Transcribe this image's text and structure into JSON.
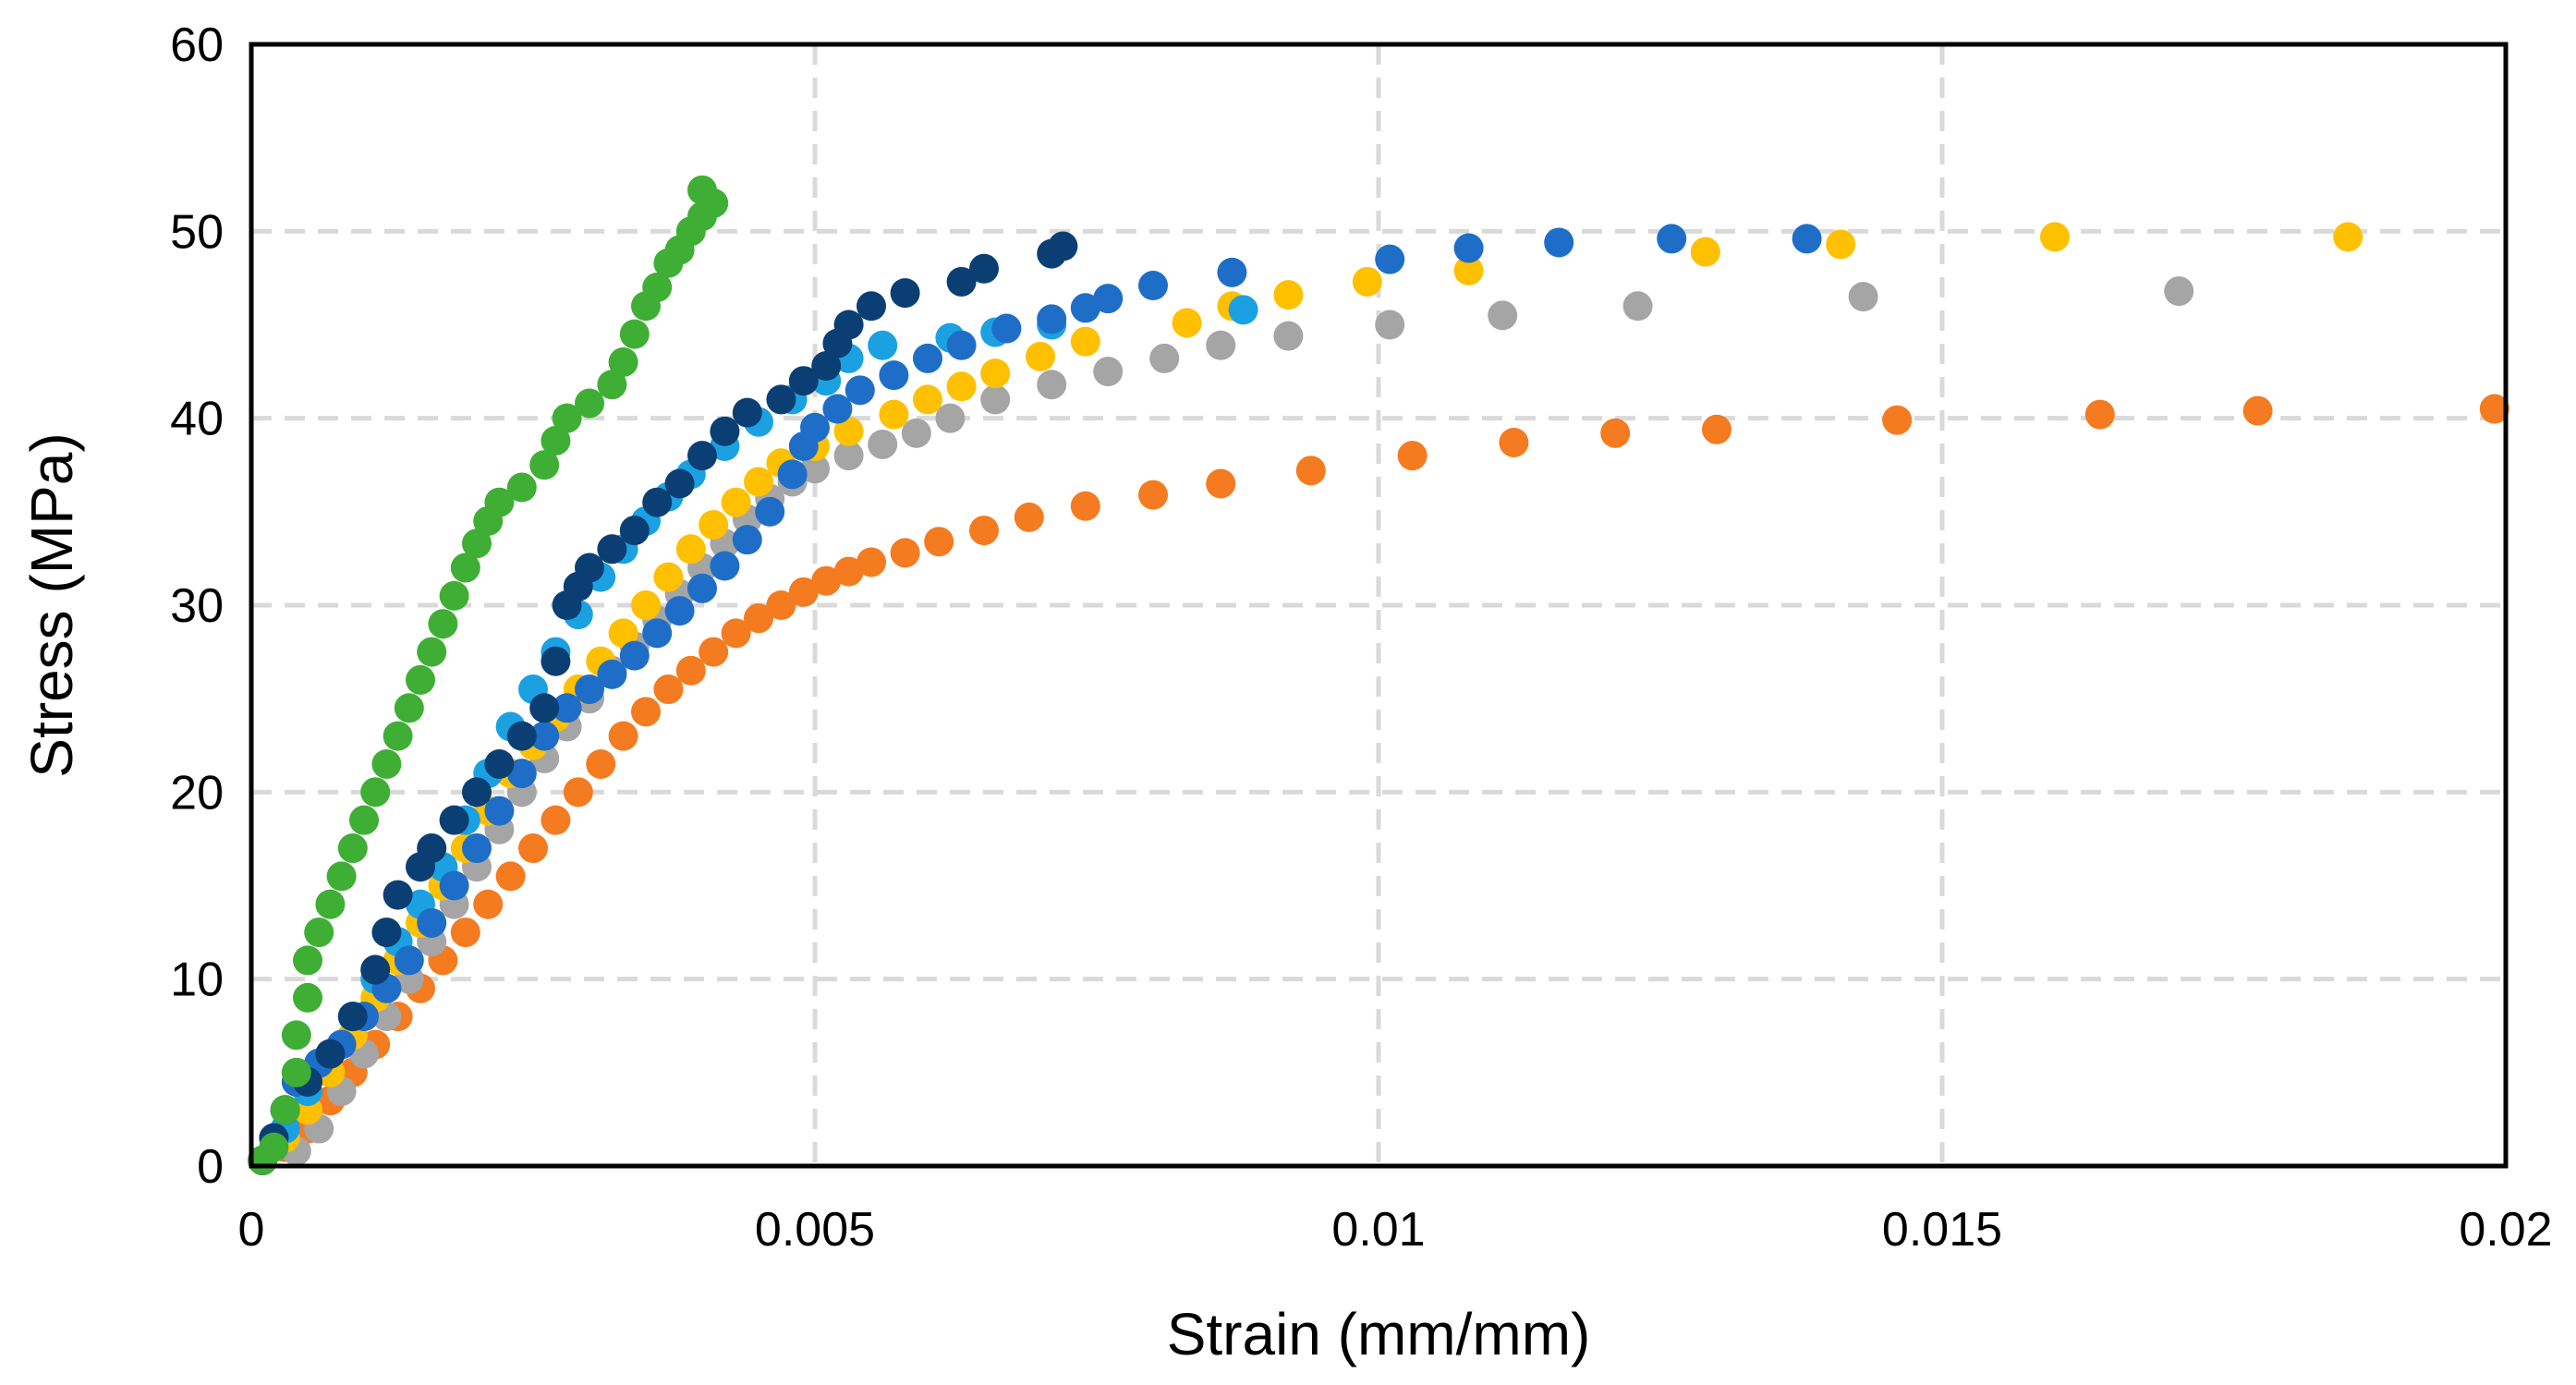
{
  "chart_data": {
    "type": "scatter",
    "title": "",
    "xlabel": "Strain (mm/mm)",
    "ylabel": "Stress (MPa)",
    "xlim": [
      0,
      0.02
    ],
    "ylim": [
      0,
      60
    ],
    "x_ticks": [
      0,
      0.005,
      0.01,
      0.015,
      0.02
    ],
    "x_tick_labels": [
      "0",
      "0.005",
      "0.01",
      "0.015",
      "0.02"
    ],
    "y_ticks": [
      0,
      10,
      20,
      30,
      40,
      50,
      60
    ],
    "y_tick_labels": [
      "0",
      "10",
      "20",
      "30",
      "40",
      "50",
      "60"
    ],
    "grid": "dashed",
    "legend": "none",
    "series": [
      {
        "name": "orange",
        "color": "#f47b20",
        "points": [
          [
            0.0001,
            0.3
          ],
          [
            0.0003,
            1.0
          ],
          [
            0.0005,
            2.0
          ],
          [
            0.0007,
            3.5
          ],
          [
            0.0009,
            5.0
          ],
          [
            0.0011,
            6.5
          ],
          [
            0.0013,
            8.0
          ],
          [
            0.0015,
            9.5
          ],
          [
            0.0017,
            11.0
          ],
          [
            0.0019,
            12.5
          ],
          [
            0.0021,
            14.0
          ],
          [
            0.0023,
            15.5
          ],
          [
            0.0025,
            17.0
          ],
          [
            0.0027,
            18.5
          ],
          [
            0.0029,
            20.0
          ],
          [
            0.0031,
            21.5
          ],
          [
            0.0033,
            23.0
          ],
          [
            0.0035,
            24.3
          ],
          [
            0.0037,
            25.5
          ],
          [
            0.0039,
            26.5
          ],
          [
            0.0041,
            27.5
          ],
          [
            0.0043,
            28.5
          ],
          [
            0.0045,
            29.3
          ],
          [
            0.0047,
            30.0
          ],
          [
            0.0049,
            30.7
          ],
          [
            0.0051,
            31.3
          ],
          [
            0.0053,
            31.8
          ],
          [
            0.0055,
            32.3
          ],
          [
            0.0058,
            32.8
          ],
          [
            0.0061,
            33.4
          ],
          [
            0.0065,
            34.0
          ],
          [
            0.0069,
            34.7
          ],
          [
            0.0074,
            35.3
          ],
          [
            0.008,
            35.9
          ],
          [
            0.0086,
            36.5
          ],
          [
            0.0094,
            37.2
          ],
          [
            0.0103,
            38.0
          ],
          [
            0.0112,
            38.7
          ],
          [
            0.0121,
            39.2
          ],
          [
            0.013,
            39.4
          ],
          [
            0.0146,
            39.9
          ],
          [
            0.0164,
            40.2
          ],
          [
            0.0178,
            40.4
          ],
          [
            0.0199,
            40.5
          ]
        ]
      },
      {
        "name": "gray",
        "color": "#a5a5a5",
        "points": [
          [
            0.0001,
            0.3
          ],
          [
            0.0004,
            0.8
          ],
          [
            0.0006,
            2.0
          ],
          [
            0.0008,
            4.0
          ],
          [
            0.001,
            6.0
          ],
          [
            0.0012,
            8.0
          ],
          [
            0.0014,
            10.0
          ],
          [
            0.0016,
            12.0
          ],
          [
            0.0018,
            14.0
          ],
          [
            0.002,
            16.0
          ],
          [
            0.0022,
            18.0
          ],
          [
            0.0024,
            20.0
          ],
          [
            0.0026,
            21.8
          ],
          [
            0.0028,
            23.5
          ],
          [
            0.003,
            25.0
          ],
          [
            0.0032,
            26.5
          ],
          [
            0.0034,
            27.8
          ],
          [
            0.0036,
            29.2
          ],
          [
            0.0038,
            30.6
          ],
          [
            0.004,
            32.0
          ],
          [
            0.0042,
            33.3
          ],
          [
            0.0044,
            34.6
          ],
          [
            0.0046,
            35.7
          ],
          [
            0.0048,
            36.6
          ],
          [
            0.005,
            37.3
          ],
          [
            0.0053,
            38.0
          ],
          [
            0.0056,
            38.6
          ],
          [
            0.0059,
            39.2
          ],
          [
            0.0062,
            40.0
          ],
          [
            0.0066,
            41.0
          ],
          [
            0.0071,
            41.8
          ],
          [
            0.0076,
            42.5
          ],
          [
            0.0081,
            43.2
          ],
          [
            0.0086,
            43.9
          ],
          [
            0.0092,
            44.4
          ],
          [
            0.0101,
            45.0
          ],
          [
            0.0111,
            45.5
          ],
          [
            0.0123,
            46.0
          ],
          [
            0.0143,
            46.5
          ],
          [
            0.0171,
            46.8
          ]
        ]
      },
      {
        "name": "yellow",
        "color": "#ffc000",
        "points": [
          [
            0.0001,
            0.3
          ],
          [
            0.0003,
            1.5
          ],
          [
            0.0005,
            3.0
          ],
          [
            0.0007,
            5.0
          ],
          [
            0.0009,
            7.0
          ],
          [
            0.0011,
            9.0
          ],
          [
            0.0013,
            11.0
          ],
          [
            0.0015,
            13.0
          ],
          [
            0.0017,
            15.0
          ],
          [
            0.0019,
            17.0
          ],
          [
            0.0021,
            19.0
          ],
          [
            0.0023,
            21.0
          ],
          [
            0.0025,
            22.5
          ],
          [
            0.0027,
            24.0
          ],
          [
            0.0029,
            25.5
          ],
          [
            0.0031,
            27.0
          ],
          [
            0.0033,
            28.5
          ],
          [
            0.0035,
            30.0
          ],
          [
            0.0037,
            31.5
          ],
          [
            0.0039,
            33.0
          ],
          [
            0.0041,
            34.3
          ],
          [
            0.0043,
            35.5
          ],
          [
            0.0045,
            36.6
          ],
          [
            0.0047,
            37.6
          ],
          [
            0.005,
            38.5
          ],
          [
            0.0053,
            39.3
          ],
          [
            0.0057,
            40.2
          ],
          [
            0.006,
            41.0
          ],
          [
            0.0063,
            41.7
          ],
          [
            0.0066,
            42.4
          ],
          [
            0.007,
            43.3
          ],
          [
            0.0074,
            44.1
          ],
          [
            0.0083,
            45.1
          ],
          [
            0.0087,
            46.0
          ],
          [
            0.0092,
            46.6
          ],
          [
            0.0099,
            47.3
          ],
          [
            0.0108,
            47.9
          ],
          [
            0.0129,
            48.9
          ],
          [
            0.0141,
            49.3
          ],
          [
            0.016,
            49.7
          ],
          [
            0.0186,
            49.7
          ]
        ]
      },
      {
        "name": "light-blue",
        "color": "#1ba1e2",
        "points": [
          [
            0.0001,
            0.3
          ],
          [
            0.0003,
            2.0
          ],
          [
            0.0005,
            4.0
          ],
          [
            0.0007,
            6.0
          ],
          [
            0.0009,
            8.0
          ],
          [
            0.0011,
            10.0
          ],
          [
            0.0013,
            12.0
          ],
          [
            0.0015,
            14.0
          ],
          [
            0.0017,
            16.0
          ],
          [
            0.0019,
            18.5
          ],
          [
            0.0021,
            21.0
          ],
          [
            0.0023,
            23.5
          ],
          [
            0.0025,
            25.5
          ],
          [
            0.0027,
            27.5
          ],
          [
            0.0029,
            29.5
          ],
          [
            0.0031,
            31.5
          ],
          [
            0.0033,
            33.0
          ],
          [
            0.0035,
            34.5
          ],
          [
            0.0037,
            35.8
          ],
          [
            0.0039,
            37.0
          ],
          [
            0.0042,
            38.5
          ],
          [
            0.0045,
            39.8
          ],
          [
            0.0048,
            41.0
          ],
          [
            0.0051,
            42.0
          ],
          [
            0.0053,
            43.2
          ],
          [
            0.0056,
            43.9
          ],
          [
            0.0062,
            44.3
          ],
          [
            0.0066,
            44.6
          ],
          [
            0.0071,
            45.0
          ],
          [
            0.0088,
            45.8
          ]
        ]
      },
      {
        "name": "blue",
        "color": "#1e6ec8",
        "points": [
          [
            0.0001,
            0.3
          ],
          [
            0.0002,
            1.5
          ],
          [
            0.0003,
            3.0
          ],
          [
            0.0004,
            4.5
          ],
          [
            0.0006,
            5.5
          ],
          [
            0.0008,
            6.5
          ],
          [
            0.001,
            8.0
          ],
          [
            0.0012,
            9.5
          ],
          [
            0.0014,
            11.0
          ],
          [
            0.0016,
            13.0
          ],
          [
            0.0018,
            15.0
          ],
          [
            0.002,
            17.0
          ],
          [
            0.0022,
            19.0
          ],
          [
            0.0024,
            21.0
          ],
          [
            0.0026,
            23.0
          ],
          [
            0.0028,
            24.5
          ],
          [
            0.003,
            25.5
          ],
          [
            0.0032,
            26.3
          ],
          [
            0.0034,
            27.3
          ],
          [
            0.0036,
            28.5
          ],
          [
            0.0038,
            29.7
          ],
          [
            0.004,
            30.9
          ],
          [
            0.0042,
            32.1
          ],
          [
            0.0044,
            33.5
          ],
          [
            0.0046,
            35.0
          ],
          [
            0.0048,
            37.0
          ],
          [
            0.0049,
            38.5
          ],
          [
            0.005,
            39.5
          ],
          [
            0.0052,
            40.5
          ],
          [
            0.0054,
            41.5
          ],
          [
            0.0057,
            42.3
          ],
          [
            0.006,
            43.2
          ],
          [
            0.0063,
            43.9
          ],
          [
            0.0067,
            44.8
          ],
          [
            0.0071,
            45.3
          ],
          [
            0.0074,
            45.9
          ],
          [
            0.0076,
            46.4
          ],
          [
            0.008,
            47.1
          ],
          [
            0.0087,
            47.8
          ],
          [
            0.0101,
            48.5
          ],
          [
            0.0108,
            49.1
          ],
          [
            0.0116,
            49.4
          ],
          [
            0.0126,
            49.6
          ],
          [
            0.0138,
            49.6
          ]
        ]
      },
      {
        "name": "dark-navy",
        "color": "#0b3f73",
        "points": [
          [
            0.0001,
            0.3
          ],
          [
            0.0002,
            1.5
          ],
          [
            0.0003,
            3.0
          ],
          [
            0.0005,
            4.5
          ],
          [
            0.0007,
            6.0
          ],
          [
            0.0009,
            8.0
          ],
          [
            0.0011,
            10.5
          ],
          [
            0.0012,
            12.5
          ],
          [
            0.0013,
            14.5
          ],
          [
            0.0015,
            16.0
          ],
          [
            0.0016,
            17.0
          ],
          [
            0.0018,
            18.5
          ],
          [
            0.002,
            20.0
          ],
          [
            0.0022,
            21.5
          ],
          [
            0.0024,
            23.0
          ],
          [
            0.0026,
            24.5
          ],
          [
            0.0027,
            27.0
          ],
          [
            0.0028,
            30.0
          ],
          [
            0.0029,
            31.0
          ],
          [
            0.003,
            32.0
          ],
          [
            0.0032,
            33.0
          ],
          [
            0.0034,
            34.0
          ],
          [
            0.0036,
            35.5
          ],
          [
            0.0038,
            36.5
          ],
          [
            0.004,
            38.0
          ],
          [
            0.0042,
            39.3
          ],
          [
            0.0044,
            40.3
          ],
          [
            0.0047,
            41.0
          ],
          [
            0.0049,
            42.0
          ],
          [
            0.0051,
            42.8
          ],
          [
            0.0052,
            44.0
          ],
          [
            0.0053,
            45.0
          ],
          [
            0.0055,
            46.0
          ],
          [
            0.0058,
            46.7
          ],
          [
            0.0063,
            47.3
          ],
          [
            0.0065,
            48.0
          ],
          [
            0.0071,
            48.8
          ],
          [
            0.0072,
            49.2
          ]
        ]
      },
      {
        "name": "green",
        "color": "#3fae35",
        "points": [
          [
            0.0001,
            0.3
          ],
          [
            0.0002,
            1.0
          ],
          [
            0.0003,
            3.0
          ],
          [
            0.0004,
            5.0
          ],
          [
            0.0004,
            7.0
          ],
          [
            0.0005,
            9.0
          ],
          [
            0.0005,
            11.0
          ],
          [
            0.0006,
            12.5
          ],
          [
            0.0007,
            14.0
          ],
          [
            0.0008,
            15.5
          ],
          [
            0.0009,
            17.0
          ],
          [
            0.001,
            18.5
          ],
          [
            0.0011,
            20.0
          ],
          [
            0.0012,
            21.5
          ],
          [
            0.0013,
            23.0
          ],
          [
            0.0014,
            24.5
          ],
          [
            0.0015,
            26.0
          ],
          [
            0.0016,
            27.5
          ],
          [
            0.0017,
            29.0
          ],
          [
            0.0018,
            30.5
          ],
          [
            0.0019,
            32.0
          ],
          [
            0.002,
            33.3
          ],
          [
            0.0021,
            34.5
          ],
          [
            0.0022,
            35.5
          ],
          [
            0.0024,
            36.3
          ],
          [
            0.0026,
            37.5
          ],
          [
            0.0027,
            38.8
          ],
          [
            0.0028,
            40.0
          ],
          [
            0.003,
            40.8
          ],
          [
            0.0032,
            41.8
          ],
          [
            0.0033,
            43.0
          ],
          [
            0.0034,
            44.5
          ],
          [
            0.0035,
            46.0
          ],
          [
            0.0036,
            47.0
          ],
          [
            0.0037,
            48.3
          ],
          [
            0.0038,
            49.0
          ],
          [
            0.0039,
            50.0
          ],
          [
            0.004,
            50.8
          ],
          [
            0.0041,
            51.5
          ],
          [
            0.004,
            52.2
          ]
        ]
      }
    ]
  }
}
